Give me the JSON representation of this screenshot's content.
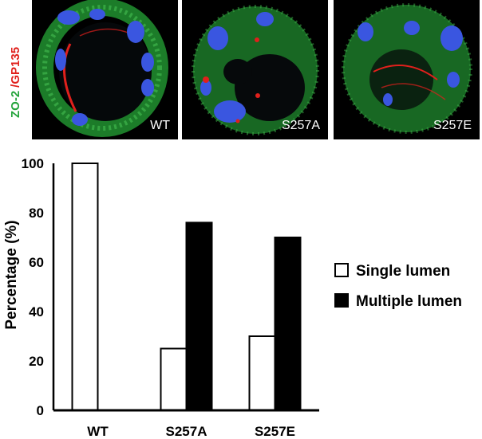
{
  "figure": {
    "stain_label_green": "ZO-2",
    "stain_label_red": "/GP135",
    "colors": {
      "green": "#22a33a",
      "red": "#e0201c",
      "nucleus": "#3a56e0",
      "background": "#000000"
    },
    "panels": [
      {
        "label": "WT"
      },
      {
        "label": "S257A"
      },
      {
        "label": "S257E"
      }
    ]
  },
  "chart_data": {
    "type": "bar",
    "categories": [
      "WT",
      "S257A",
      "S257E"
    ],
    "series": [
      {
        "name": "Single lumen",
        "values": [
          100,
          25,
          30
        ],
        "fill": "#ffffff"
      },
      {
        "name": "Multiple lumen",
        "values": [
          0,
          76,
          70
        ],
        "fill": "#000000"
      }
    ],
    "ylabel": "Percentage (%)",
    "ylim": [
      0,
      100
    ],
    "yticks": [
      0,
      20,
      40,
      60,
      80,
      100
    ],
    "legend_position": "right",
    "grid": false
  }
}
